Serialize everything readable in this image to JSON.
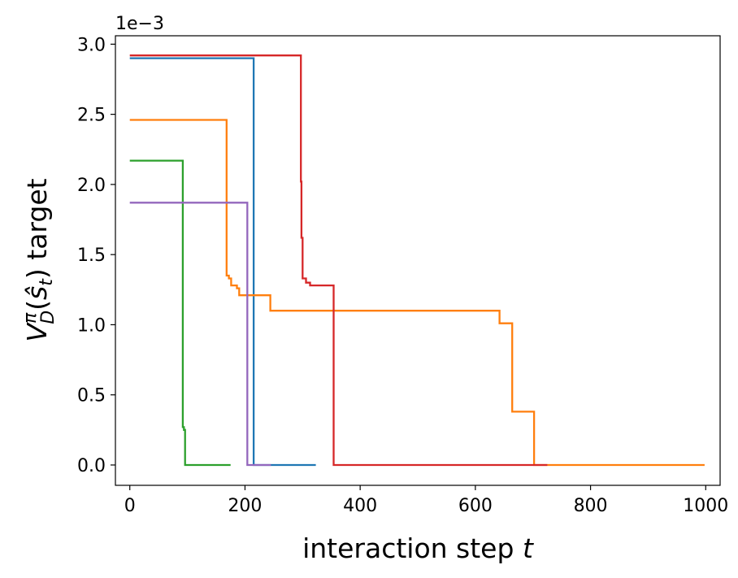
{
  "chart_data": {
    "type": "line",
    "offset_text": "1e−3",
    "xlabel": {
      "main": "interaction step ",
      "var": "t"
    },
    "ylabel": {
      "main": "V",
      "sup": "π",
      "sub": "D",
      "paren_open": "(",
      "arg": "ŝ",
      "argsub": "t",
      "paren_close": ")",
      "rest": " target"
    },
    "xlim": [
      -25,
      1025
    ],
    "ylim": [
      -0.145,
      3.06
    ],
    "xticks": [
      0,
      200,
      400,
      600,
      800,
      1000
    ],
    "xtick_labels": [
      "0",
      "200",
      "400",
      "600",
      "800",
      "1000"
    ],
    "yticks": [
      0.0,
      0.5,
      1.0,
      1.5,
      2.0,
      2.5,
      3.0
    ],
    "ytick_labels": [
      "0.0",
      "0.5",
      "1.0",
      "1.5",
      "2.0",
      "2.5",
      "3.0"
    ],
    "grid": false,
    "series": [
      {
        "color": "#1f77b4",
        "points": [
          [
            0,
            2.9
          ],
          [
            215,
            2.9
          ],
          [
            215,
            0.0
          ],
          [
            323,
            0.0
          ]
        ]
      },
      {
        "color": "#ff7f0e",
        "points": [
          [
            0,
            2.46
          ],
          [
            168,
            2.46
          ],
          [
            168,
            1.35
          ],
          [
            172,
            1.35
          ],
          [
            172,
            1.33
          ],
          [
            176,
            1.33
          ],
          [
            176,
            1.28
          ],
          [
            186,
            1.28
          ],
          [
            186,
            1.26
          ],
          [
            190,
            1.26
          ],
          [
            190,
            1.21
          ],
          [
            244,
            1.21
          ],
          [
            244,
            1.1
          ],
          [
            642,
            1.1
          ],
          [
            642,
            1.01
          ],
          [
            664,
            1.01
          ],
          [
            664,
            0.38
          ],
          [
            702,
            0.38
          ],
          [
            702,
            0.0
          ],
          [
            998,
            0.0
          ]
        ]
      },
      {
        "color": "#2ca02c",
        "points": [
          [
            0,
            2.17
          ],
          [
            92,
            2.17
          ],
          [
            92,
            0.27
          ],
          [
            94,
            0.27
          ],
          [
            94,
            0.25
          ],
          [
            96,
            0.25
          ],
          [
            96,
            0.0
          ],
          [
            175,
            0.0
          ]
        ]
      },
      {
        "color": "#d62728",
        "points": [
          [
            0,
            2.92
          ],
          [
            297,
            2.92
          ],
          [
            297,
            2.02
          ],
          [
            298,
            2.02
          ],
          [
            298,
            1.62
          ],
          [
            300,
            1.62
          ],
          [
            300,
            1.33
          ],
          [
            306,
            1.33
          ],
          [
            306,
            1.3
          ],
          [
            313,
            1.3
          ],
          [
            313,
            1.28
          ],
          [
            354,
            1.28
          ],
          [
            354,
            0.0
          ],
          [
            725,
            0.0
          ]
        ]
      },
      {
        "color": "#9467bd",
        "points": [
          [
            0,
            1.87
          ],
          [
            204,
            1.87
          ],
          [
            204,
            0.0
          ],
          [
            245,
            0.0
          ]
        ]
      }
    ]
  }
}
